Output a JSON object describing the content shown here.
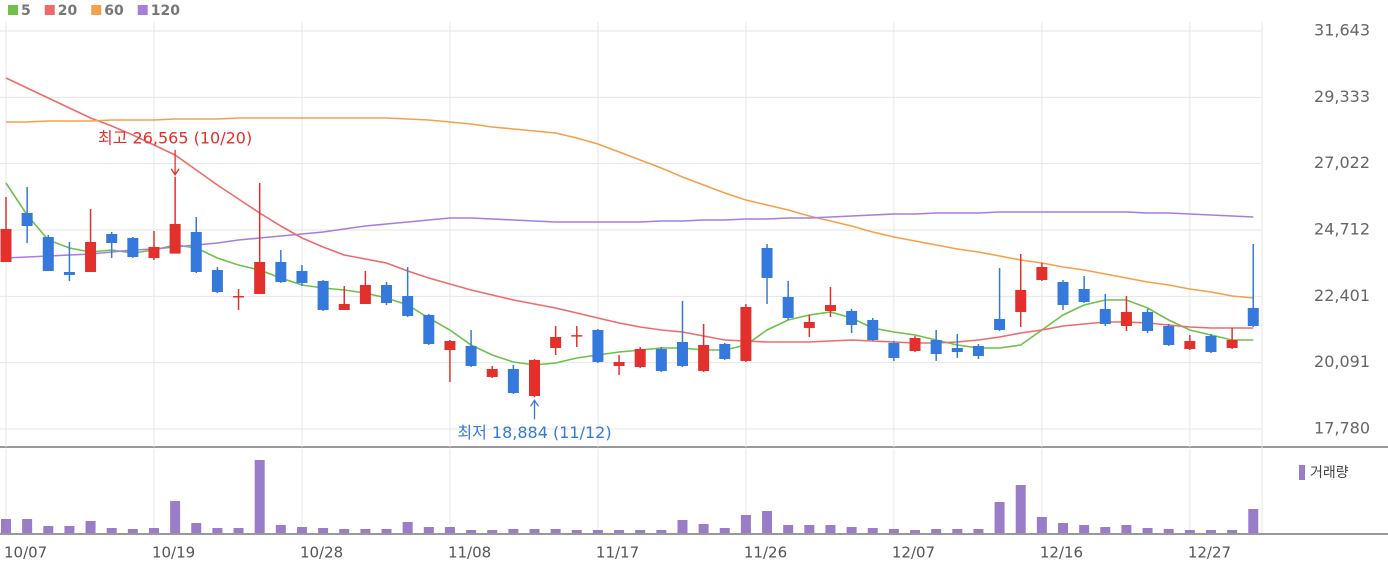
{
  "chart_data": {
    "type": "candlestick",
    "categories": [
      "10/07",
      null,
      null,
      null,
      null,
      null,
      null,
      "10/19",
      null,
      null,
      null,
      null,
      null,
      null,
      "10/28",
      null,
      null,
      null,
      null,
      null,
      null,
      "11/08",
      null,
      null,
      null,
      null,
      null,
      null,
      "11/17",
      null,
      null,
      null,
      null,
      null,
      null,
      "11/26",
      null,
      null,
      null,
      null,
      null,
      null,
      "12/07",
      null,
      null,
      null,
      null,
      null,
      null,
      "12/16",
      null,
      null,
      null,
      null,
      null,
      null,
      "12/27",
      null,
      null,
      null
    ],
    "open": [
      23597,
      25304,
      24468,
      23249,
      23249,
      24572,
      24433,
      23737,
      23890,
      24642,
      23319,
      22378,
      22483,
      23597,
      23284,
      22936,
      21926,
      22134,
      22796,
      22413,
      21752,
      20532,
      20672,
      19592,
      19870,
      18930,
      20602,
      21000,
      21229,
      19975,
      19940,
      20567,
      20811,
      19801,
      20741,
      20149,
      24085,
      22378,
      21299,
      21891,
      21891,
      21578,
      20776,
      20497,
      20880,
      20602,
      20672,
      21613,
      21856,
      22970,
      22901,
      22657,
      21961,
      21368,
      21856,
      21368,
      20567,
      21020,
      20602,
      21996
    ],
    "high": [
      25861,
      26210,
      24538,
      24294,
      25443,
      24642,
      24468,
      24677,
      26565,
      25165,
      23423,
      22657,
      26349,
      24015,
      23493,
      22970,
      22761,
      23284,
      22901,
      23423,
      21787,
      20880,
      21229,
      19975,
      20010,
      20219,
      21368,
      21368,
      21264,
      20358,
      20637,
      20637,
      22239,
      21438,
      20776,
      22134,
      24224,
      22936,
      21752,
      22727,
      21961,
      21647,
      20846,
      21020,
      21229,
      21090,
      20741,
      23389,
      23876,
      23563,
      22970,
      23110,
      22483,
      22413,
      21961,
      21438,
      21055,
      21090,
      21299,
      24224
    ],
    "low": [
      23597,
      24259,
      23284,
      22936,
      23249,
      23737,
      23737,
      23667,
      23890,
      23214,
      22518,
      21926,
      22483,
      22866,
      22761,
      21891,
      21926,
      22134,
      22099,
      21682,
      20706,
      19418,
      19940,
      19557,
      18999,
      18884,
      20358,
      20637,
      20079,
      19662,
      19905,
      19766,
      19940,
      19766,
      20184,
      20114,
      22134,
      21578,
      20985,
      21682,
      21124,
      20846,
      20149,
      20462,
      20149,
      20254,
      20219,
      21194,
      21333,
      22936,
      21926,
      22169,
      21368,
      21194,
      21124,
      20672,
      20532,
      20427,
      20567,
      21333
    ],
    "close": [
      24747,
      24851,
      23284,
      23145,
      24294,
      24259,
      23771,
      24120,
      24921,
      23249,
      22552,
      22413,
      23597,
      22901,
      22866,
      21926,
      22134,
      22796,
      22169,
      21717,
      20741,
      20846,
      19975,
      19870,
      19034,
      20184,
      20985,
      21050,
      20114,
      20114,
      20567,
      19801,
      19975,
      20706,
      20219,
      22030,
      23040,
      21647,
      21508,
      22099,
      21403,
      20880,
      20254,
      20950,
      20393,
      20462,
      20323,
      21229,
      22622,
      23423,
      22099,
      22204,
      21438,
      21856,
      21194,
      20706,
      20846,
      20462,
      20880,
      21368
    ],
    "up_color": "#e3302c",
    "down_color": "#3579dc",
    "ylim": [
      17780,
      31643
    ],
    "yticks": [
      {
        "value": 17780,
        "label": "17,780"
      },
      {
        "value": 20091,
        "label": "20,091"
      },
      {
        "value": 22401,
        "label": "22,401"
      },
      {
        "value": 24712,
        "label": "24,712"
      },
      {
        "value": 27022,
        "label": "27,022"
      },
      {
        "value": 29333,
        "label": "29,333"
      },
      {
        "value": 31643,
        "label": "31,643"
      }
    ],
    "grid": true,
    "series": [
      {
        "name": "5",
        "color": "#6cc24a",
        "values": [
          26349,
          25235,
          24364,
          24085,
          23946,
          24015,
          23911,
          24015,
          24189,
          24085,
          23737,
          23493,
          23319,
          23040,
          22796,
          22692,
          22622,
          22518,
          22343,
          22099,
          21647,
          21229,
          20706,
          20358,
          20114,
          20010,
          20079,
          20254,
          20358,
          20462,
          20532,
          20602,
          20602,
          20532,
          20532,
          20706,
          21229,
          21577,
          21752,
          21856,
          21647,
          21299,
          21159,
          21055,
          20881,
          20706,
          20602,
          20602,
          20706,
          21229,
          21752,
          22099,
          22274,
          22274,
          21995,
          21577,
          21229,
          21055,
          20881,
          20881
        ]
      },
      {
        "name": "20",
        "color": "#ef6b6b",
        "values": [
          30006,
          29658,
          29309,
          28961,
          28613,
          28334,
          28021,
          27672,
          27324,
          26802,
          26279,
          25792,
          25304,
          24851,
          24433,
          24120,
          23841,
          23702,
          23562,
          23284,
          23040,
          22831,
          22622,
          22448,
          22274,
          22134,
          21995,
          21821,
          21647,
          21473,
          21333,
          21229,
          21159,
          21020,
          20881,
          20846,
          20811,
          20811,
          20811,
          20846,
          20881,
          20846,
          20811,
          20776,
          20776,
          20811,
          20881,
          20985,
          21124,
          21229,
          21368,
          21438,
          21507,
          21507,
          21473,
          21403,
          21333,
          21298,
          21298,
          21298
        ]
      },
      {
        "name": "60",
        "color": "#f5a04a",
        "values": [
          28473,
          28473,
          28508,
          28508,
          28508,
          28543,
          28543,
          28543,
          28578,
          28578,
          28578,
          28613,
          28613,
          28613,
          28613,
          28613,
          28613,
          28613,
          28613,
          28578,
          28543,
          28473,
          28404,
          28299,
          28230,
          28160,
          28090,
          27916,
          27707,
          27429,
          27150,
          26871,
          26558,
          26279,
          26001,
          25757,
          25583,
          25409,
          25200,
          25025,
          24851,
          24642,
          24468,
          24329,
          24189,
          24050,
          23946,
          23806,
          23667,
          23562,
          23423,
          23319,
          23180,
          23040,
          22901,
          22796,
          22657,
          22552,
          22413,
          22343
        ]
      },
      {
        "name": "120",
        "color": "#a77de0",
        "values": [
          23737,
          23772,
          23807,
          23841,
          23876,
          23946,
          24015,
          24050,
          24120,
          24189,
          24259,
          24364,
          24433,
          24503,
          24573,
          24642,
          24747,
          24851,
          24921,
          24991,
          25060,
          25130,
          25130,
          25095,
          25060,
          25025,
          24991,
          24991,
          24991,
          24991,
          24991,
          25025,
          25025,
          25060,
          25060,
          25095,
          25095,
          25130,
          25130,
          25165,
          25200,
          25234,
          25269,
          25269,
          25304,
          25304,
          25304,
          25339,
          25339,
          25339,
          25339,
          25339,
          25339,
          25339,
          25304,
          25304,
          25269,
          25234,
          25200,
          25165
        ]
      }
    ],
    "volume": {
      "name": "거래량",
      "color": "#9a7dc8",
      "ylim": [
        0,
        75
      ],
      "values": [
        14,
        14,
        7,
        7,
        12,
        5,
        4,
        5,
        32,
        10,
        5,
        5,
        73,
        8,
        6,
        5,
        4,
        4,
        4,
        11,
        6,
        6,
        3,
        3,
        4,
        4,
        4,
        3,
        3,
        3,
        3,
        3,
        13,
        9,
        5,
        18,
        22,
        8,
        8,
        8,
        6,
        5,
        4,
        3,
        4,
        4,
        4,
        31,
        48,
        16,
        10,
        8,
        6,
        8,
        5,
        4,
        3,
        3,
        3,
        24
      ]
    },
    "annotations": {
      "high": "최고 26,565 (10/20)",
      "low": "최저 18,884 (11/12)"
    }
  }
}
